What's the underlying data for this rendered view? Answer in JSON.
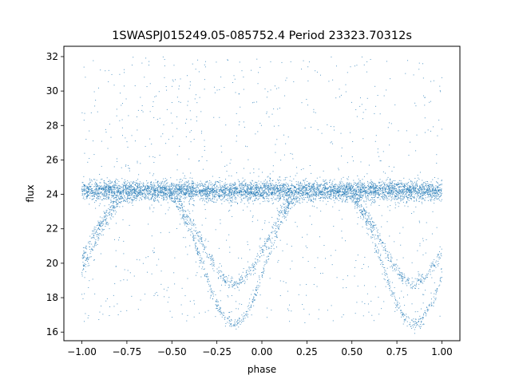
{
  "chart_data": {
    "type": "scatter",
    "title": "1SWASPJ015249.05-085752.4 Period 23323.70312s",
    "xlabel": "phase",
    "ylabel": "flux",
    "xlim": [
      -1.1,
      1.1
    ],
    "ylim": [
      15.5,
      32.6
    ],
    "xticks": [
      -1.0,
      -0.75,
      -0.5,
      -0.25,
      0.0,
      0.25,
      0.5,
      0.75,
      1.0
    ],
    "xtick_labels": [
      "−1.00",
      "−0.75",
      "−0.50",
      "−0.25",
      "0.00",
      "0.25",
      "0.50",
      "0.75",
      "1.00"
    ],
    "yticks": [
      16,
      18,
      20,
      22,
      24,
      26,
      28,
      30,
      32
    ],
    "ytick_labels": [
      "16",
      "18",
      "20",
      "22",
      "24",
      "26",
      "28",
      "30",
      "32"
    ],
    "grid": false,
    "marker_color": "#1f77b4",
    "series": [
      {
        "description_points": "folded light curve, baseline flux ~24.2 with scatter ±0.5",
        "baseline": 24.2,
        "x": [
          -1.0,
          -0.9,
          -0.8,
          -0.7,
          -0.6,
          -0.5,
          -0.4,
          -0.3,
          -0.25,
          -0.2,
          -0.15,
          -0.1,
          -0.05,
          0.0,
          0.1,
          0.2,
          0.3,
          0.4,
          0.5,
          0.6,
          0.7,
          0.75,
          0.8,
          0.85,
          0.9,
          0.95,
          1.0
        ],
        "y_lower_branch": [
          19.5,
          21.8,
          23.6,
          24.2,
          24.2,
          24.0,
          22.0,
          19.0,
          17.6,
          16.8,
          16.4,
          16.8,
          17.8,
          19.3,
          22.3,
          24.1,
          24.2,
          24.2,
          24.0,
          22.0,
          19.0,
          17.6,
          16.8,
          16.4,
          16.8,
          17.8,
          19.3
        ],
        "y_upper_branch": [
          20.3,
          22.3,
          23.8,
          24.2,
          24.2,
          24.1,
          22.6,
          20.5,
          19.6,
          19.0,
          18.8,
          19.1,
          19.8,
          20.6,
          22.8,
          24.1,
          24.2,
          24.2,
          24.1,
          22.6,
          20.5,
          19.6,
          19.0,
          18.8,
          19.1,
          19.8,
          20.6
        ]
      }
    ]
  }
}
